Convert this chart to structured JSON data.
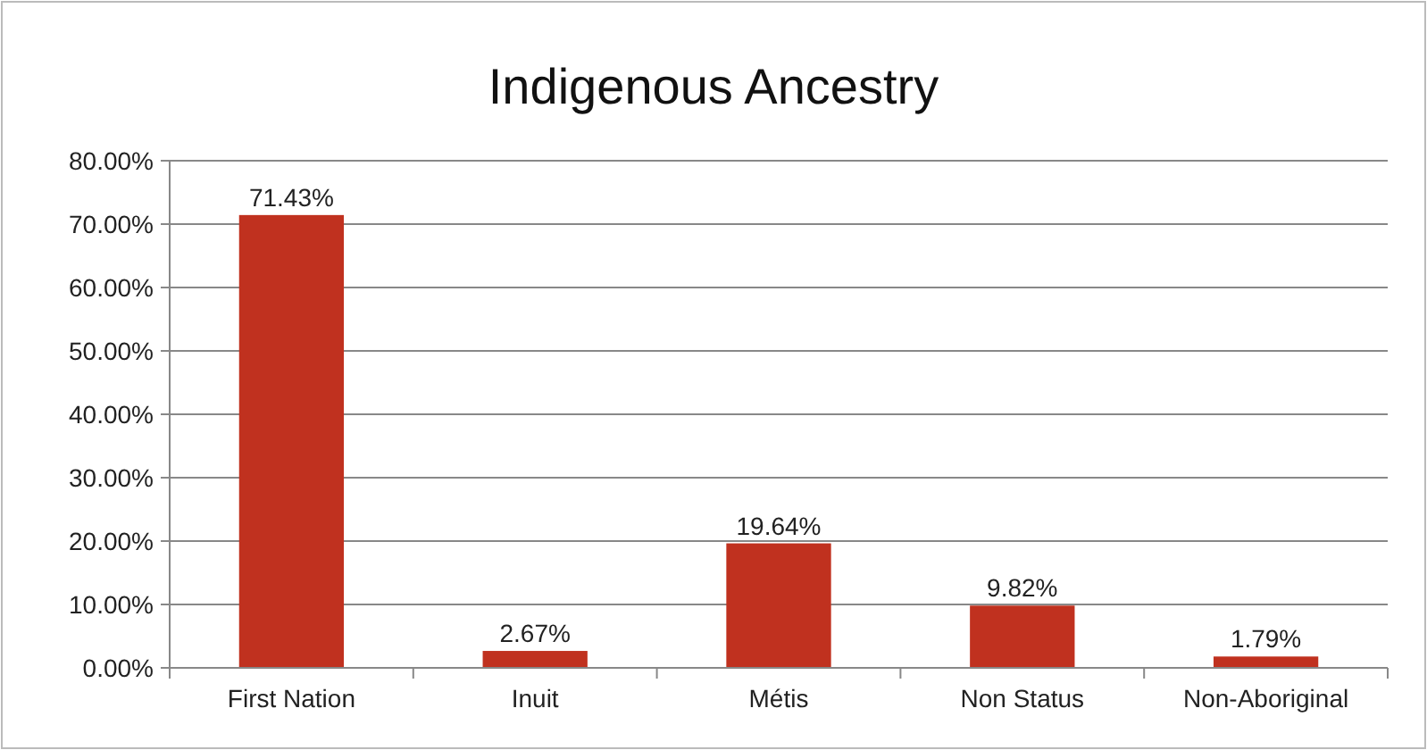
{
  "chart_data": {
    "type": "bar",
    "title": "Indigenous Ancestry",
    "categories": [
      "First Nation",
      "Inuit",
      "Métis",
      "Non Status",
      "Non-Aboriginal"
    ],
    "values": [
      71.43,
      2.67,
      19.64,
      9.82,
      1.79
    ],
    "value_labels": [
      "71.43%",
      "2.67%",
      "19.64%",
      "9.82%",
      "1.79%"
    ],
    "color": "#c0311f",
    "ylim": [
      0,
      80
    ],
    "yticks": [
      {
        "value": 0,
        "label": "0.00%"
      },
      {
        "value": 10,
        "label": "10.00%"
      },
      {
        "value": 20,
        "label": "20.00%"
      },
      {
        "value": 30,
        "label": "30.00%"
      },
      {
        "value": 40,
        "label": "40.00%"
      },
      {
        "value": 50,
        "label": "50.00%"
      },
      {
        "value": 60,
        "label": "60.00%"
      },
      {
        "value": 70,
        "label": "70.00%"
      },
      {
        "value": 80,
        "label": "80.00%"
      }
    ],
    "grid": "y"
  }
}
